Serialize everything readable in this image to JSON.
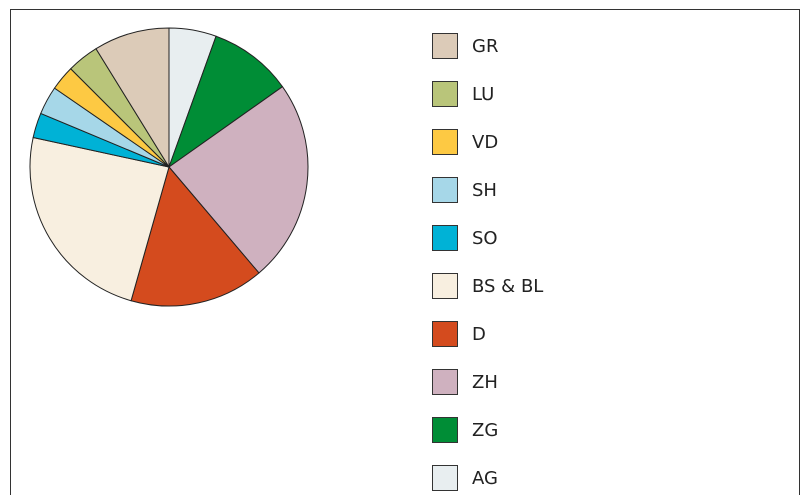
{
  "chart_data": {
    "type": "pie",
    "categories": [
      "GR",
      "LU",
      "VD",
      "SH",
      "SO",
      "BS & BL",
      "D",
      "ZH",
      "ZG",
      "AG"
    ],
    "values": [
      8.8,
      3.7,
      2.9,
      3.3,
      2.9,
      24,
      15.6,
      23.6,
      9.7,
      5.5
    ],
    "colors": [
      "#dccbb8",
      "#b9c57a",
      "#fdc943",
      "#a6d7e8",
      "#00b2d6",
      "#f8efe0",
      "#d44b1e",
      "#cfb1bf",
      "#008d36",
      "#e8eef0"
    ],
    "legend": "right"
  }
}
